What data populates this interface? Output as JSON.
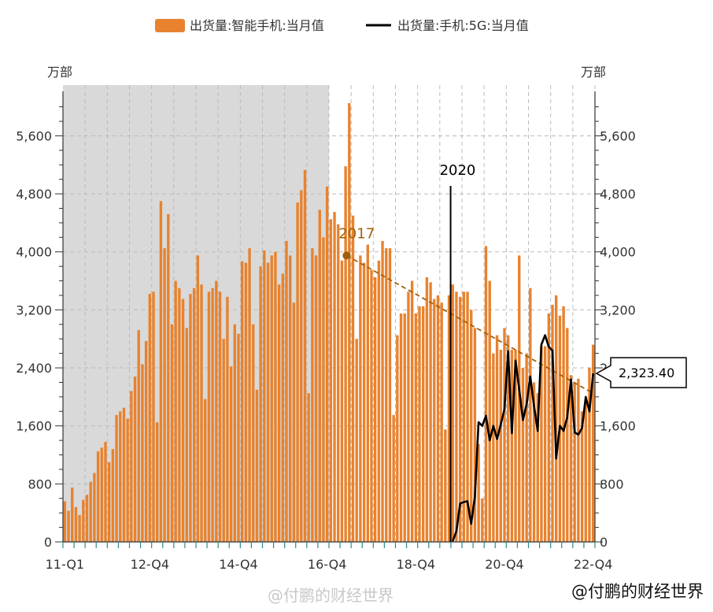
{
  "legend": {
    "series1_label": "出货量:智能手机:当月值",
    "series2_label": "出货量:手机:5G:当月值"
  },
  "axis": {
    "left_unit": "万部",
    "right_unit": "万部",
    "y_ticks": [
      "0",
      "800",
      "1,600",
      "2,400",
      "3,200",
      "4,000",
      "4,800",
      "5,600"
    ],
    "x_ticks": [
      "11-Q1",
      "12-Q4",
      "14-Q4",
      "16-Q4",
      "18-Q4",
      "20-Q4",
      "22-Q4"
    ]
  },
  "annotations": {
    "year_2017": "2017",
    "year_2020": "2020",
    "callout_value": "2,323.40"
  },
  "watermarks": {
    "main": "@付鹏的财经世界",
    "weibo": "@付鹏的财经世界"
  },
  "colors": {
    "bar": "#E8822E",
    "line": "#000000",
    "shade": "#D9D9D9",
    "trend": "#A0600A"
  },
  "chart_data": {
    "type": "bar",
    "x_start": "2011-01",
    "x_end": "2022-12",
    "frequency": "monthly",
    "y_range": [
      0,
      6300
    ],
    "grid": true,
    "shaded_region": [
      "2011-01",
      "2016-12"
    ],
    "series": [
      {
        "name": "出货量:智能手机:当月值",
        "type": "bar",
        "values": [
          560,
          430,
          750,
          480,
          370,
          580,
          650,
          830,
          950,
          1250,
          1300,
          1380,
          1100,
          1280,
          1750,
          1800,
          1850,
          1700,
          2080,
          2280,
          2920,
          2450,
          2770,
          3420,
          3450,
          1650,
          4700,
          4050,
          4520,
          3000,
          3600,
          3500,
          3350,
          2950,
          3420,
          3500,
          3950,
          3550,
          1970,
          3450,
          3500,
          3600,
          3450,
          2800,
          3380,
          2420,
          3000,
          2870,
          3870,
          3850,
          4050,
          3000,
          2100,
          3800,
          4020,
          3850,
          3950,
          4000,
          3550,
          3700,
          4150,
          3950,
          3300,
          4680,
          4850,
          5130,
          2050,
          4050,
          3950,
          4580,
          4200,
          4900,
          4450,
          4550,
          4380,
          3880,
          5180,
          6050,
          4500,
          2800,
          3950,
          3850,
          4100,
          3750,
          3650,
          3880,
          4150,
          4050,
          4050,
          1750,
          2850,
          3150,
          3150,
          3450,
          3600,
          3150,
          3250,
          3250,
          3650,
          3580,
          3350,
          3400,
          3300,
          1550,
          3400,
          3550,
          3450,
          3380,
          3450,
          3450,
          3200,
          2950,
          1350,
          600,
          4080,
          3600,
          2600,
          2850,
          2650,
          2950,
          2850,
          2650,
          2650,
          3950,
          2400,
          2600,
          3500,
          2200,
          2050,
          2700,
          2700,
          3150,
          3270,
          3400,
          3120,
          3250,
          2950,
          2300,
          2200,
          2250,
          1800,
          1950,
          2400,
          2720
        ]
      },
      {
        "name": "出货量:手机:5G:当月值",
        "type": "line",
        "start": "2019-07",
        "values": [
          10,
          150,
          530,
          550,
          560,
          250,
          620,
          1650,
          1600,
          1740,
          1400,
          1600,
          1420,
          1620,
          1830,
          2630,
          1500,
          2500,
          2100,
          1680,
          1900,
          2280,
          1880,
          1530,
          2720,
          2850,
          2690,
          2640,
          1150,
          1600,
          1530,
          1720,
          2240,
          1510,
          1480,
          1570,
          2000,
          1800,
          2323.4
        ]
      }
    ]
  }
}
